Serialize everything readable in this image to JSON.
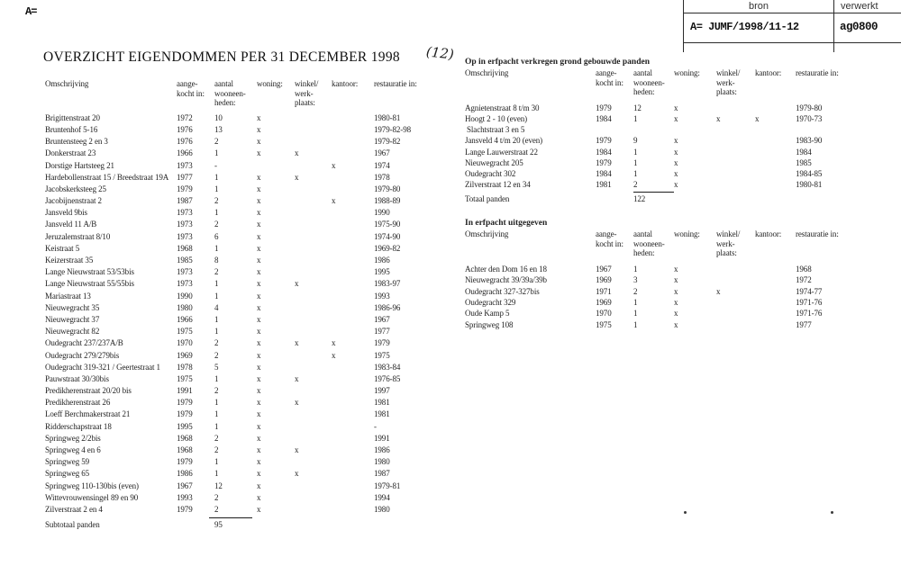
{
  "page": {
    "corner_mark": "A=",
    "title": "OVERZICHT EIGENDOMMEN PER 31 DECEMBER 1998",
    "handwritten_note": "(12)"
  },
  "stamp": {
    "bron_label": "bron",
    "verwerkt_label": "verwerkt",
    "bron_value": "A= JUMF/1998/11-12",
    "verwerkt_value": "ag0800"
  },
  "columns": {
    "omschrijving": "Omschrijving",
    "aangekocht": "aange-\nkocht in:",
    "aantal": "aantal\nwooneen-\nheden:",
    "woning": "woning:",
    "winkel": "winkel/\nwerk-\nplaats:",
    "kantoor": "kantoor:",
    "restauratie": "restauratie in:"
  },
  "owned": {
    "rows": [
      {
        "name": "Brigittenstraat 20",
        "year": "1972",
        "units": "10",
        "woning": "x",
        "winkel": "",
        "kantoor": "",
        "rest": "1980-81"
      },
      {
        "name": "Bruntenhof 5-16",
        "year": "1976",
        "units": "13",
        "woning": "x",
        "winkel": "",
        "kantoor": "",
        "rest": "1979-82-98"
      },
      {
        "name": "Bruntensteeg 2 en 3",
        "year": "1976",
        "units": "2",
        "woning": "x",
        "winkel": "",
        "kantoor": "",
        "rest": "1979-82"
      },
      {
        "name": "Donkerstraat 23",
        "year": "1966",
        "units": "1",
        "woning": "x",
        "winkel": "x",
        "kantoor": "",
        "rest": "1967"
      },
      {
        "name": "Dorstige Hartsteeg 21",
        "year": "1973",
        "units": "-",
        "woning": "",
        "winkel": "",
        "kantoor": "x",
        "rest": "1974"
      },
      {
        "name": "Hardebollenstraat 15 / Breedstraat 19A",
        "year": "1977",
        "units": "1",
        "woning": "x",
        "winkel": "x",
        "kantoor": "",
        "rest": "1978"
      },
      {
        "name": "Jacobskerksteeg 25",
        "year": "1979",
        "units": "1",
        "woning": "x",
        "winkel": "",
        "kantoor": "",
        "rest": "1979-80"
      },
      {
        "name": "Jacobijnenstraat 2",
        "year": "1987",
        "units": "2",
        "woning": "x",
        "winkel": "",
        "kantoor": "x",
        "rest": "1988-89"
      },
      {
        "name": "Jansveld 9bis",
        "year": "1973",
        "units": "1",
        "woning": "x",
        "winkel": "",
        "kantoor": "",
        "rest": "1990"
      },
      {
        "name": "Jansveld 11 A/B",
        "year": "1973",
        "units": "2",
        "woning": "x",
        "winkel": "",
        "kantoor": "",
        "rest": "1975-90"
      },
      {
        "name": "Jeruzalemstraat 8/10",
        "year": "1973",
        "units": "6",
        "woning": "x",
        "winkel": "",
        "kantoor": "",
        "rest": "1974-90"
      },
      {
        "name": "Keistraat 5",
        "year": "1968",
        "units": "1",
        "woning": "x",
        "winkel": "",
        "kantoor": "",
        "rest": "1969-82"
      },
      {
        "name": "Keizerstraat 35",
        "year": "1985",
        "units": "8",
        "woning": "x",
        "winkel": "",
        "kantoor": "",
        "rest": "1986"
      },
      {
        "name": "Lange Nieuwstraat 53/53bis",
        "year": "1973",
        "units": "2",
        "woning": "x",
        "winkel": "",
        "kantoor": "",
        "rest": "1995"
      },
      {
        "name": "Lange Nieuwstraat 55/55bis",
        "year": "1973",
        "units": "1",
        "woning": "x",
        "winkel": "x",
        "kantoor": "",
        "rest": "1983-97"
      },
      {
        "name": "Mariastraat 13",
        "year": "1990",
        "units": "1",
        "woning": "x",
        "winkel": "",
        "kantoor": "",
        "rest": "1993"
      },
      {
        "name": "Nieuwegracht 35",
        "year": "1980",
        "units": "4",
        "woning": "x",
        "winkel": "",
        "kantoor": "",
        "rest": "1986-96"
      },
      {
        "name": "Nieuwegracht 37",
        "year": "1966",
        "units": "1",
        "woning": "x",
        "winkel": "",
        "kantoor": "",
        "rest": "1967"
      },
      {
        "name": "Nieuwegracht 82",
        "year": "1975",
        "units": "1",
        "woning": "x",
        "winkel": "",
        "kantoor": "",
        "rest": "1977"
      },
      {
        "name": "Oudegracht 237/237A/B",
        "year": "1970",
        "units": "2",
        "woning": "x",
        "winkel": "x",
        "kantoor": "x",
        "rest": "1979"
      },
      {
        "name": "Oudegracht 279/279bis",
        "year": "1969",
        "units": "2",
        "woning": "x",
        "winkel": "",
        "kantoor": "x",
        "rest": "1975"
      },
      {
        "name": "Oudegracht 319-321 / Geertestraat 1",
        "year": "1978",
        "units": "5",
        "woning": "x",
        "winkel": "",
        "kantoor": "",
        "rest": "1983-84"
      },
      {
        "name": "Pauwstraat 30/30bis",
        "year": "1975",
        "units": "1",
        "woning": "x",
        "winkel": "x",
        "kantoor": "",
        "rest": "1976-85"
      },
      {
        "name": "Predikherenstraat 20/20 bis",
        "year": "1991",
        "units": "2",
        "woning": "x",
        "winkel": "",
        "kantoor": "",
        "rest": "1997"
      },
      {
        "name": "Predikherenstraat 26",
        "year": "1979",
        "units": "1",
        "woning": "x",
        "winkel": "x",
        "kantoor": "",
        "rest": "1981"
      },
      {
        "name": "Loeff Berchmakerstraat 21",
        "year": "1979",
        "units": "1",
        "woning": "x",
        "winkel": "",
        "kantoor": "",
        "rest": "1981"
      },
      {
        "name": "Ridderschapstraat 18",
        "year": "1995",
        "units": "1",
        "woning": "x",
        "winkel": "",
        "kantoor": "",
        "rest": "-"
      },
      {
        "name": "Springweg 2/2bis",
        "year": "1968",
        "units": "2",
        "woning": "x",
        "winkel": "",
        "kantoor": "",
        "rest": "1991"
      },
      {
        "name": "Springweg 4 en 6",
        "year": "1968",
        "units": "2",
        "woning": "x",
        "winkel": "x",
        "kantoor": "",
        "rest": "1986"
      },
      {
        "name": "Springweg 59",
        "year": "1979",
        "units": "1",
        "woning": "x",
        "winkel": "",
        "kantoor": "",
        "rest": "1980"
      },
      {
        "name": "Springweg 65",
        "year": "1986",
        "units": "1",
        "woning": "x",
        "winkel": "x",
        "kantoor": "",
        "rest": "1987"
      },
      {
        "name": "Springweg 110-130bis (even)",
        "year": "1967",
        "units": "12",
        "woning": "x",
        "winkel": "",
        "kantoor": "",
        "rest": "1979-81"
      },
      {
        "name": "Wittevrouwensingel 89 en 90",
        "year": "1993",
        "units": "2",
        "woning": "x",
        "winkel": "",
        "kantoor": "",
        "rest": "1994"
      },
      {
        "name": "Zilverstraat 2 en 4",
        "year": "1979",
        "units": "2",
        "woning": "x",
        "winkel": "",
        "kantoor": "",
        "rest": "1980"
      }
    ],
    "subtotal_label": "Subtotaal panden",
    "subtotal_value": "95"
  },
  "leasehold_acquired": {
    "section_title": "Op in  erfpacht verkregen grond gebouwde panden",
    "rows": [
      {
        "name": "Agnietenstraat 8 t/m 30",
        "year": "1979",
        "units": "12",
        "woning": "x",
        "winkel": "",
        "kantoor": "",
        "rest": "1979-80"
      },
      {
        "name": "Hoogt 2 - 10 (even)",
        "name2": "Slachtstraat 3 en 5",
        "year": "1984",
        "units": "1",
        "woning": "x",
        "winkel": "x",
        "kantoor": "x",
        "rest": "1970-73"
      },
      {
        "name": "Jansveld 4 t/m 20 (even)",
        "year": "1979",
        "units": "9",
        "woning": "x",
        "winkel": "",
        "kantoor": "",
        "rest": "1983-90"
      },
      {
        "name": "Lange Lauwerstraat 22",
        "year": "1984",
        "units": "1",
        "woning": "x",
        "winkel": "",
        "kantoor": "",
        "rest": "1984"
      },
      {
        "name": "Nieuwegracht 205",
        "year": "1979",
        "units": "1",
        "woning": "x",
        "winkel": "",
        "kantoor": "",
        "rest": "1985"
      },
      {
        "name": "Oudegracht 302",
        "year": "1984",
        "units": "1",
        "woning": "x",
        "winkel": "",
        "kantoor": "",
        "rest": "1984-85"
      },
      {
        "name": "Zilverstraat 12 en 34",
        "year": "1981",
        "units": "2",
        "woning": "x",
        "winkel": "",
        "kantoor": "",
        "rest": "1980-81"
      }
    ],
    "total_label": "Totaal panden",
    "total_value": "122"
  },
  "leasehold_issued": {
    "section_title": "In erfpacht uitgegeven",
    "rows": [
      {
        "name": "Achter den Dom 16 en 18",
        "year": "1967",
        "units": "1",
        "woning": "x",
        "winkel": "",
        "kantoor": "",
        "rest": "1968"
      },
      {
        "name": "Nieuwegracht 39/39a/39b",
        "year": "1969",
        "units": "3",
        "woning": "x",
        "winkel": "",
        "kantoor": "",
        "rest": "1972"
      },
      {
        "name": "Oudegracht 327-327bis",
        "year": "1971",
        "units": "2",
        "woning": "x",
        "winkel": "x",
        "kantoor": "",
        "rest": "1974-77"
      },
      {
        "name": "Oudegracht 329",
        "year": "1969",
        "units": "1",
        "woning": "x",
        "winkel": "",
        "kantoor": "",
        "rest": "1971-76"
      },
      {
        "name": "Oude Kamp 5",
        "year": "1970",
        "units": "1",
        "woning": "x",
        "winkel": "",
        "kantoor": "",
        "rest": "1971-76"
      },
      {
        "name": "Springweg 108",
        "year": "1975",
        "units": "1",
        "woning": "x",
        "winkel": "",
        "kantoor": "",
        "rest": "1977"
      }
    ]
  }
}
